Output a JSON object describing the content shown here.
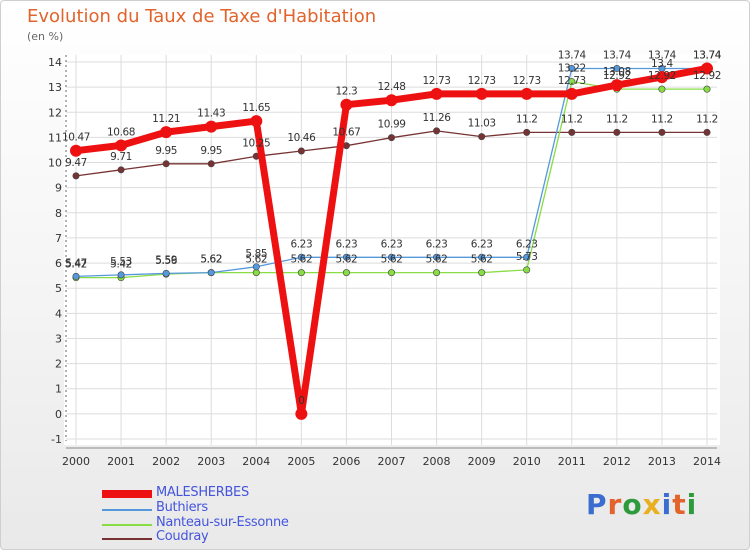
{
  "title": "Evolution du Taux de Taxe d'Habitation",
  "subtitle": "(en %)",
  "logo": {
    "text": "Proxiti",
    "colors": [
      "#3b6ccf",
      "#e2632b",
      "#2d9a3b",
      "#e8b020",
      "#3b6ccf",
      "#e2632b",
      "#2d9a3b"
    ]
  },
  "chart_data": {
    "type": "line",
    "title": "Evolution du Taux de Taxe d'Habitation",
    "ylabel": "(en %)",
    "xlabel": "",
    "x": [
      "2000",
      "2001",
      "2002",
      "2003",
      "2004",
      "2005",
      "2006",
      "2007",
      "2008",
      "2009",
      "2010",
      "2011",
      "2012",
      "2013",
      "2014"
    ],
    "ylim": [
      -1,
      14
    ],
    "yticks": [
      -1,
      0,
      1,
      2,
      3,
      4,
      5,
      6,
      7,
      8,
      9,
      10,
      11,
      12,
      13,
      14
    ],
    "grid": true,
    "legend_position": "bottom-left",
    "series": [
      {
        "name": "MALESHERBES",
        "color": "#ee1111",
        "values": [
          10.47,
          10.68,
          11.21,
          11.43,
          11.65,
          0,
          12.3,
          12.48,
          12.73,
          12.73,
          12.73,
          12.73,
          13.08,
          13.4,
          13.74
        ],
        "labels": [
          "10.47",
          "10.68",
          "11.21",
          "11.43",
          "11.65",
          "0",
          "12.3",
          "12.48",
          "12.73",
          "12.73",
          "12.73",
          "12.73",
          "13.08",
          "13.4",
          "13.74"
        ]
      },
      {
        "name": "Buthiers",
        "color": "#5599dd",
        "values": [
          5.47,
          5.53,
          5.59,
          5.62,
          5.85,
          6.23,
          6.23,
          6.23,
          6.23,
          6.23,
          6.23,
          13.74,
          13.74,
          13.74,
          13.74
        ],
        "labels": [
          "5.47",
          "5.53",
          "5.59",
          "5.62",
          "5.85",
          "6.23",
          "6.23",
          "6.23",
          "6.23",
          "6.23",
          "6.23",
          "13.74",
          "13.74",
          "13.74",
          "13.74"
        ]
      },
      {
        "name": "Nanteau-sur-Essonne",
        "color": "#88dd44",
        "values": [
          5.42,
          5.42,
          5.56,
          5.62,
          5.62,
          5.62,
          5.62,
          5.62,
          5.62,
          5.62,
          5.73,
          13.22,
          12.92,
          12.92,
          12.92
        ],
        "labels": [
          "5.42",
          "5.42",
          "5.56",
          "5.62",
          "5.62",
          "5.62",
          "5.62",
          "5.62",
          "5.62",
          "5.62",
          "5.73",
          "13.22",
          "12.92",
          "12.92",
          "12.92"
        ]
      },
      {
        "name": "Coudray",
        "color": "#773333",
        "values": [
          9.47,
          9.71,
          9.95,
          9.95,
          10.25,
          10.46,
          10.67,
          10.99,
          11.26,
          11.03,
          11.2,
          11.2,
          11.2,
          11.2,
          11.2
        ],
        "labels": [
          "9.47",
          "9.71",
          "9.95",
          "9.95",
          "10.25",
          "10.46",
          "10.67",
          "10.99",
          "11.26",
          "11.03",
          "11.2",
          "11.2",
          "11.2",
          "11.2",
          "11.2"
        ]
      }
    ]
  }
}
